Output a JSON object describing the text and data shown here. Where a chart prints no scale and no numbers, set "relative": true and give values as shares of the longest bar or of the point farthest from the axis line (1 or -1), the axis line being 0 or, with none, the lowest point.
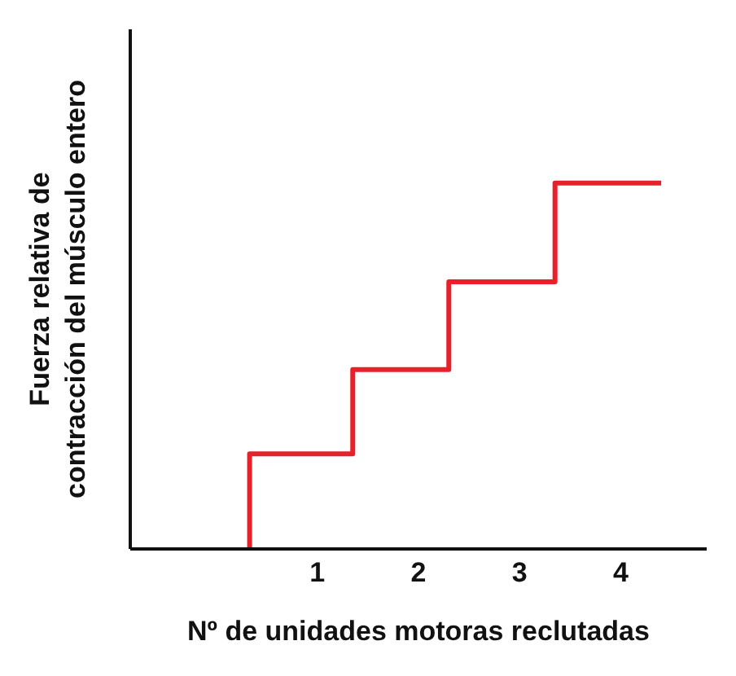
{
  "chart_data": {
    "type": "step",
    "xlabel": "Nº de unidades motoras reclutadas",
    "ylabel": "Fuerza relativa de contracción del músculo entero",
    "relative": true,
    "x": [
      0.33,
      0.33,
      1.35,
      2.3,
      3.35,
      4.4
    ],
    "series": [
      {
        "color": "#e8202a",
        "values": [
          0,
          0.26,
          0.49,
          0.73,
          1,
          1
        ]
      }
    ],
    "xlim": [
      -0.85,
      4.85
    ],
    "xticks": [
      1,
      2,
      3,
      4
    ],
    "grid": false,
    "legend": false,
    "marker": "none",
    "line_style": "solid"
  }
}
